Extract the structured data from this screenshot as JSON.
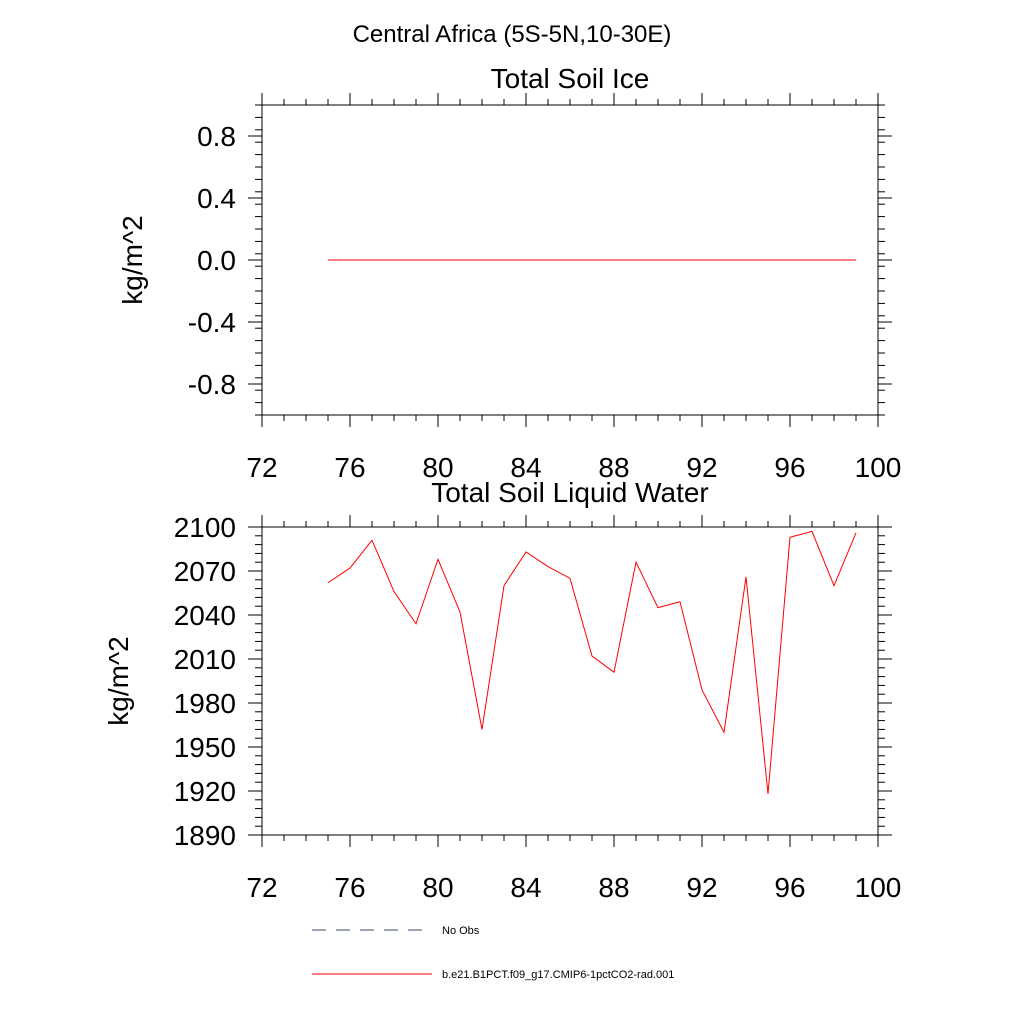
{
  "figure": {
    "suptitle": "Central Africa (5S-5N,10-30E)"
  },
  "chart_data": [
    {
      "type": "line",
      "title": "Total Soil Ice",
      "xlabel": "",
      "ylabel": "kg/m^2",
      "xlim": [
        72,
        100
      ],
      "ylim": [
        -1.0,
        1.0
      ],
      "x_ticks": [
        72,
        76,
        80,
        84,
        88,
        92,
        96,
        100
      ],
      "y_ticks": [
        -0.8,
        -0.4,
        0.0,
        0.4,
        0.8
      ],
      "y_tick_labels": [
        "-0.8",
        "-0.4",
        "0.0",
        "0.4",
        "0.8"
      ],
      "grid": false,
      "series": [
        {
          "name": "b.e21.B1PCT.f09_g17.CMIP6-1pctCO2-rad.001",
          "color": "#ff0000",
          "x": [
            75,
            76,
            77,
            78,
            79,
            80,
            81,
            82,
            83,
            84,
            85,
            86,
            87,
            88,
            89,
            90,
            91,
            92,
            93,
            94,
            95,
            96,
            97,
            98,
            99
          ],
          "values": [
            0,
            0,
            0,
            0,
            0,
            0,
            0,
            0,
            0,
            0,
            0,
            0,
            0,
            0,
            0,
            0,
            0,
            0,
            0,
            0,
            0,
            0,
            0,
            0,
            0
          ]
        }
      ]
    },
    {
      "type": "line",
      "title": "Total Soil Liquid Water",
      "xlabel": "",
      "ylabel": "kg/m^2",
      "xlim": [
        72,
        100
      ],
      "ylim": [
        1890,
        2100
      ],
      "x_ticks": [
        72,
        76,
        80,
        84,
        88,
        92,
        96,
        100
      ],
      "y_ticks": [
        1890,
        1920,
        1950,
        1980,
        2010,
        2040,
        2070,
        2100
      ],
      "y_tick_labels": [
        "1890",
        "1920",
        "1950",
        "1980",
        "2010",
        "2040",
        "2070",
        "2100"
      ],
      "grid": false,
      "series": [
        {
          "name": "b.e21.B1PCT.f09_g17.CMIP6-1pctCO2-rad.001",
          "color": "#ff0000",
          "x": [
            75,
            76,
            77,
            78,
            79,
            80,
            81,
            82,
            83,
            84,
            85,
            86,
            87,
            88,
            89,
            90,
            91,
            92,
            93,
            94,
            95,
            96,
            97,
            98,
            99
          ],
          "values": [
            2062,
            2072,
            2091,
            2056,
            2034,
            2078,
            2042,
            1962,
            2060,
            2083,
            2073,
            2065,
            2012,
            2001,
            2076,
            2045,
            2049,
            1989,
            1960,
            2066,
            1918,
            2093,
            2097,
            2060,
            2096
          ]
        }
      ]
    }
  ],
  "legend": {
    "placement": "bottom-left",
    "items": [
      {
        "label": "No Obs",
        "color": "#3a4a6b",
        "style": "dashed"
      },
      {
        "label": "b.e21.B1PCT.f09_g17.CMIP6-1pctCO2-rad.001",
        "color": "#ff0000",
        "style": "solid"
      }
    ]
  }
}
